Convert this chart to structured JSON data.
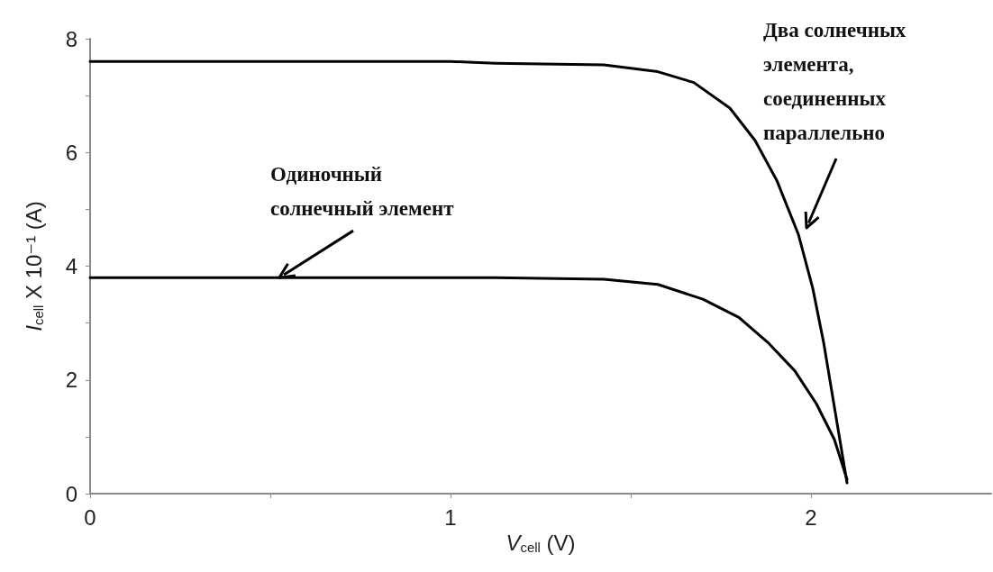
{
  "chart_data": {
    "type": "line",
    "xlabel": "V$_{cell}$ (V)",
    "ylabel": "I$_{cell}$ X 10⁻¹ (A)",
    "xlim": [
      0,
      2.5
    ],
    "xticks": [
      0,
      {
        "value": 0.5,
        "label": null
      },
      1,
      {
        "value": 1.5,
        "label": null
      },
      2
    ],
    "ylim": [
      0,
      8
    ],
    "yticks": [
      0,
      {
        "value": 1,
        "label": null
      },
      2,
      {
        "value": 3,
        "label": null
      },
      4,
      {
        "value": 5,
        "label": null
      },
      6,
      {
        "value": 7,
        "label": null
      },
      8
    ],
    "grid": false,
    "marker": "none",
    "line_style": "solid",
    "series": [
      {
        "color": "#000000",
        "x": [
          0,
          0.5,
          1.0,
          1.125,
          1.425,
          1.575,
          1.675,
          1.775,
          1.845,
          1.905,
          1.965,
          2.005,
          2.035,
          2.065,
          2.1
        ],
        "values": [
          7.6,
          7.6,
          7.6,
          7.57,
          7.54,
          7.42,
          7.23,
          6.78,
          6.21,
          5.51,
          4.56,
          3.61,
          2.66,
          1.52,
          0.19
        ]
      },
      {
        "color": "#000000",
        "x": [
          0,
          0.5,
          1.0,
          1.125,
          1.425,
          1.575,
          1.7,
          1.8,
          1.88,
          1.955,
          2.015,
          2.065,
          2.1
        ],
        "values": [
          3.8,
          3.8,
          3.8,
          3.8,
          3.77,
          3.68,
          3.42,
          3.1,
          2.66,
          2.16,
          1.58,
          0.95,
          0.25
        ]
      }
    ],
    "annotations": [
      {
        "text": "Одиночный солнечный элемент",
        "x": 0.52,
        "y": 3.8
      },
      "Два солнечных элемента, соединенных параллельно"
    ]
  }
}
